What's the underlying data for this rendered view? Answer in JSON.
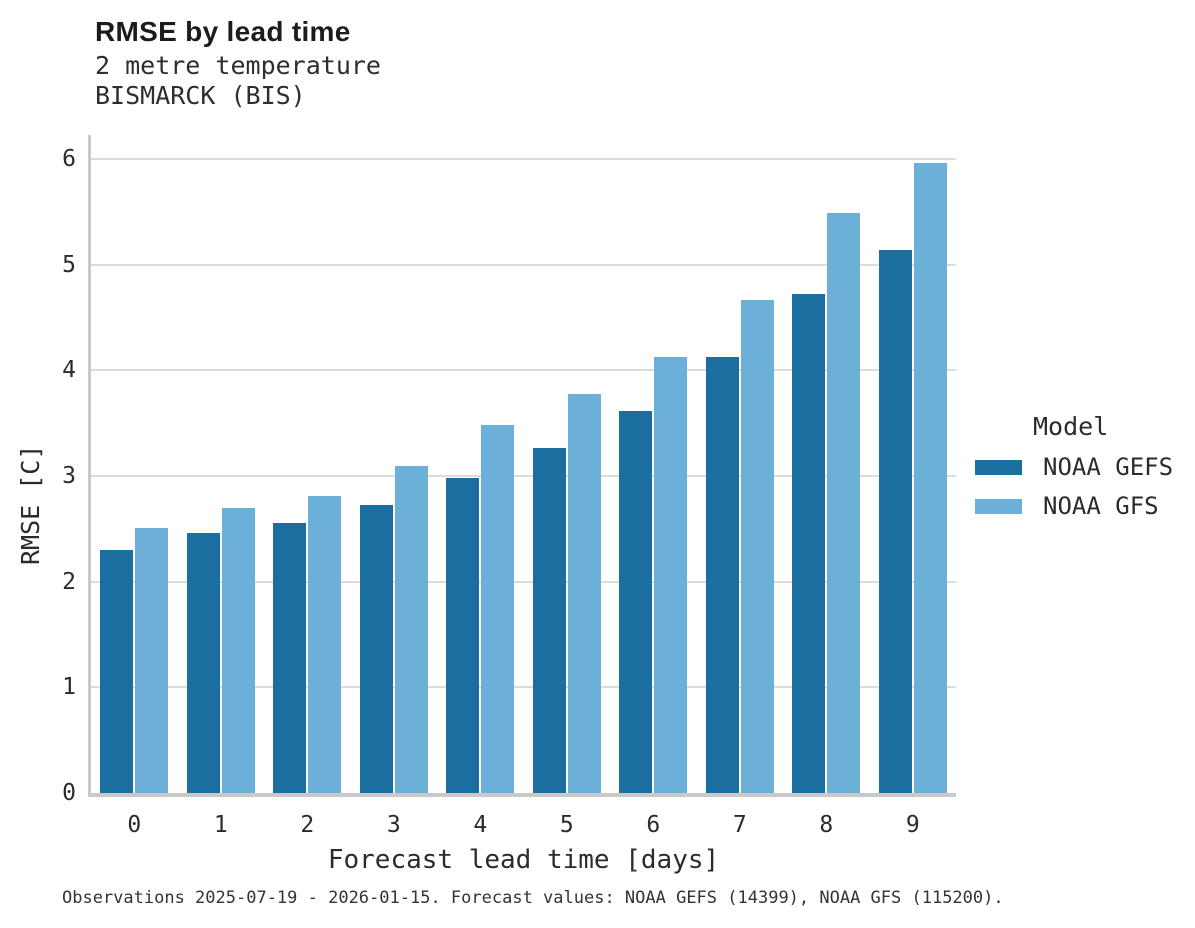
{
  "header": {
    "title": "RMSE by lead time",
    "subtitle_line1": "2 metre temperature",
    "subtitle_line2": "BISMARCK (BIS)"
  },
  "axes": {
    "xlabel": "Forecast lead time [days]",
    "ylabel": "RMSE [C]"
  },
  "legend": {
    "title": "Model",
    "items": [
      {
        "label": "NOAA GEFS",
        "color": "#1a6fa0"
      },
      {
        "label": "NOAA GFS",
        "color": "#6cb0d9"
      }
    ]
  },
  "caption": "Observations 2025-07-19 - 2026-01-15. Forecast values: NOAA GEFS (14399), NOAA GFS (115200).",
  "chart_data": {
    "type": "bar",
    "title": "RMSE by lead time",
    "subtitle": [
      "2 metre temperature",
      "BISMARCK (BIS)"
    ],
    "categories": [
      0,
      1,
      2,
      3,
      4,
      5,
      6,
      7,
      8,
      9
    ],
    "series": [
      {
        "name": "NOAA GEFS",
        "color": "#1a6fa0",
        "values": [
          2.3,
          2.46,
          2.56,
          2.73,
          2.98,
          3.27,
          3.62,
          4.13,
          4.72,
          5.14
        ]
      },
      {
        "name": "NOAA GFS",
        "color": "#6cb0d9",
        "values": [
          2.51,
          2.7,
          2.81,
          3.1,
          3.48,
          3.78,
          4.13,
          4.67,
          5.49,
          5.96
        ]
      }
    ],
    "xlabel": "Forecast lead time [days]",
    "ylabel": "RMSE [C]",
    "ylim": [
      0,
      6.21
    ],
    "yticks": [
      0,
      1,
      2,
      3,
      4,
      5,
      6
    ],
    "grid": "horizontal",
    "background": "#ffffff",
    "legend": {
      "title": "Model",
      "position": "right"
    }
  }
}
